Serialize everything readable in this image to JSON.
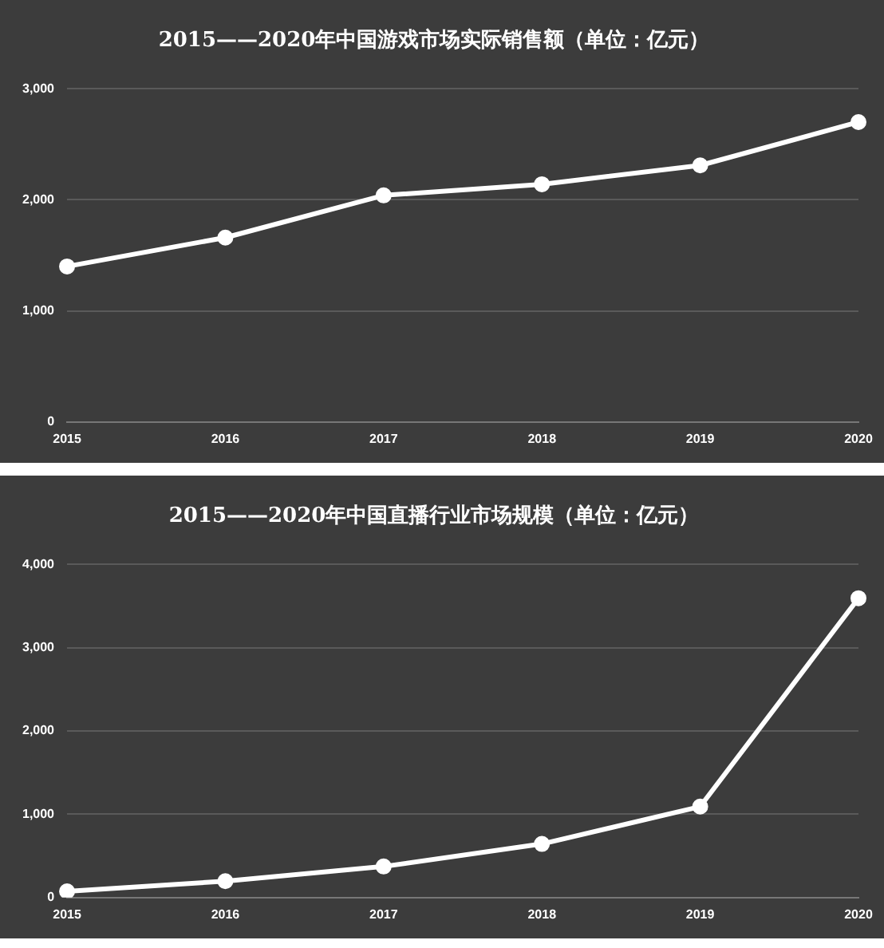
{
  "chart_data": [
    {
      "type": "line",
      "title": "2015——2020年中国游戏市场实际销售额（单位：亿元）",
      "categories": [
        "2015",
        "2016",
        "2017",
        "2018",
        "2019",
        "2020"
      ],
      "series": [
        {
          "color": "#ffffff",
          "values": [
            1400,
            1660,
            2040,
            2140,
            2310,
            2700
          ]
        }
      ],
      "ylim": [
        0,
        3000
      ],
      "yticks": [
        {
          "value": 0,
          "label": "0"
        },
        {
          "value": 1000,
          "label": "1,000"
        },
        {
          "value": 2000,
          "label": "2,000"
        },
        {
          "value": 3000,
          "label": "3,000"
        }
      ],
      "grid": "y",
      "marker": "circle",
      "line_style": "solid"
    },
    {
      "type": "line",
      "title": "2015——2020年中国直播行业市场规模（单位：亿元）",
      "categories": [
        "2015",
        "2016",
        "2017",
        "2018",
        "2019",
        "2020"
      ],
      "series": [
        {
          "color": "#ffffff",
          "values": [
            75,
            197,
            373,
            644,
            1092,
            3593
          ]
        }
      ],
      "ylim": [
        0,
        4000
      ],
      "yticks": [
        {
          "value": 0,
          "label": "0"
        },
        {
          "value": 1000,
          "label": "1,000"
        },
        {
          "value": 2000,
          "label": "2,000"
        },
        {
          "value": 3000,
          "label": "3,000"
        },
        {
          "value": 4000,
          "label": "4,000"
        }
      ],
      "grid": "y",
      "marker": "circle",
      "line_style": "solid"
    }
  ]
}
